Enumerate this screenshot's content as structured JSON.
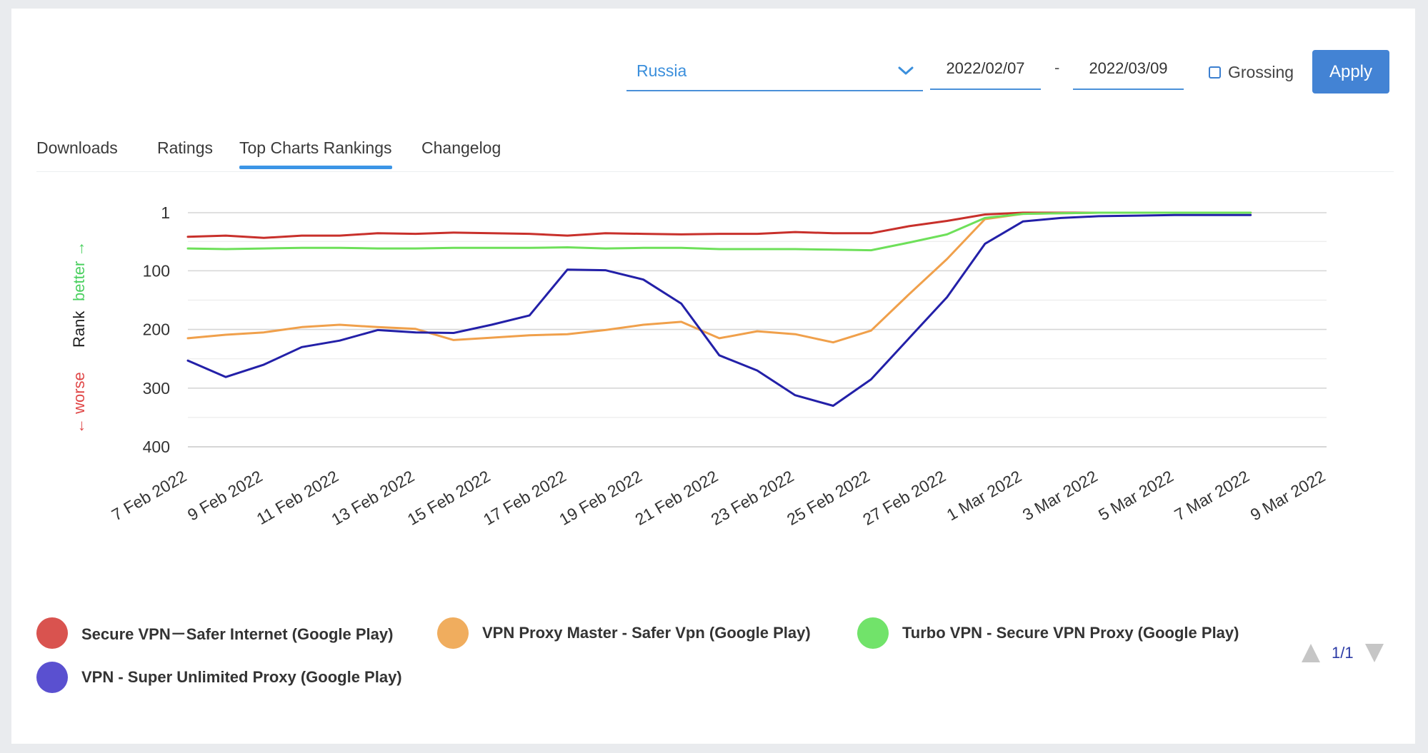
{
  "filters": {
    "country": "Russia",
    "date_from": "2022/02/07",
    "date_separator": "-",
    "date_to": "2022/03/09",
    "grossing_label": "Grossing",
    "grossing_checked": false,
    "apply_label": "Apply"
  },
  "tabs": [
    {
      "label": "Downloads",
      "active": false
    },
    {
      "label": "Ratings",
      "active": false
    },
    {
      "label": "Top Charts Rankings",
      "active": true
    },
    {
      "label": "Changelog",
      "active": false
    }
  ],
  "axis_title": {
    "worse": "← worse",
    "rank": "Rank",
    "better": "better →"
  },
  "pager": {
    "label": "1/1"
  },
  "chart_data": {
    "type": "line",
    "title": "",
    "xlabel": "",
    "ylabel": "Rank",
    "y_inverted": true,
    "ylim": [
      1,
      400
    ],
    "yticks": [
      1,
      100,
      200,
      300,
      400
    ],
    "x_tick_labels": [
      "7 Feb 2022",
      "9 Feb 2022",
      "11 Feb 2022",
      "13 Feb 2022",
      "15 Feb 2022",
      "17 Feb 2022",
      "19 Feb 2022",
      "21 Feb 2022",
      "23 Feb 2022",
      "25 Feb 2022",
      "27 Feb 2022",
      "1 Mar 2022",
      "3 Mar 2022",
      "5 Mar 2022",
      "7 Mar 2022",
      "9 Mar 2022"
    ],
    "x": [
      "7 Feb",
      "8 Feb",
      "9 Feb",
      "10 Feb",
      "11 Feb",
      "12 Feb",
      "13 Feb",
      "14 Feb",
      "15 Feb",
      "16 Feb",
      "17 Feb",
      "18 Feb",
      "19 Feb",
      "20 Feb",
      "21 Feb",
      "22 Feb",
      "23 Feb",
      "24 Feb",
      "25 Feb",
      "26 Feb",
      "27 Feb",
      "28 Feb",
      "1 Mar",
      "2 Mar",
      "3 Mar",
      "4 Mar",
      "5 Mar",
      "6 Mar",
      "7 Mar"
    ],
    "legend_position": "bottom",
    "series": [
      {
        "name": "Secure VPN－Safer Internet (Google Play)",
        "color": "#c8302b",
        "legend_color": "#d9534f",
        "values": [
          42,
          40,
          44,
          40,
          40,
          36,
          37,
          35,
          36,
          37,
          40,
          36,
          37,
          38,
          37,
          37,
          34,
          36,
          36,
          24,
          15,
          4,
          1,
          1,
          1,
          1,
          1,
          1,
          1
        ]
      },
      {
        "name": "VPN Proxy Master - Safer Vpn (Google Play)",
        "color": "#f0a04b",
        "legend_color": "#f0ad5e",
        "values": [
          215,
          209,
          205,
          196,
          192,
          196,
          199,
          218,
          214,
          210,
          208,
          201,
          192,
          187,
          215,
          203,
          208,
          222,
          202,
          140,
          80,
          12,
          3,
          2,
          1,
          1,
          1,
          1,
          1
        ]
      },
      {
        "name": "Turbo VPN - Secure VPN Proxy (Google Play)",
        "color": "#6ee05a",
        "legend_color": "#71e36a",
        "values": [
          62,
          63,
          62,
          61,
          61,
          62,
          62,
          61,
          61,
          61,
          60,
          62,
          61,
          61,
          63,
          63,
          63,
          64,
          65,
          52,
          38,
          10,
          3,
          2,
          1,
          1,
          1,
          1,
          1
        ]
      },
      {
        "name": "VPN - Super Unlimited Proxy (Google Play)",
        "color": "#2320a8",
        "legend_color": "#5a50d0",
        "values": [
          253,
          281,
          260,
          230,
          219,
          201,
          205,
          206,
          192,
          176,
          98,
          99,
          115,
          156,
          244,
          270,
          312,
          330,
          285,
          215,
          145,
          54,
          16,
          10,
          7,
          6,
          5,
          5,
          5
        ]
      }
    ]
  }
}
